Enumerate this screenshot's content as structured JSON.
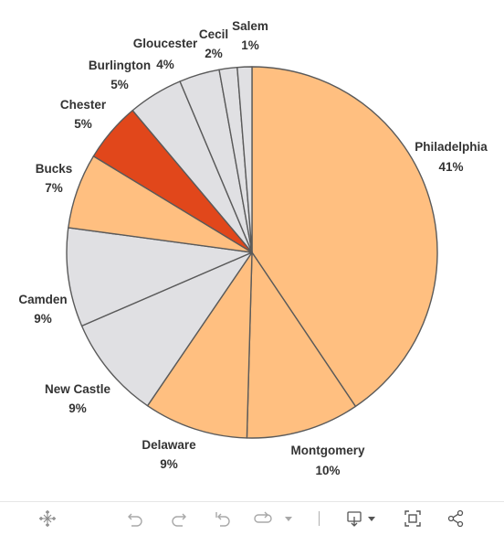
{
  "chart_data": {
    "type": "pie",
    "title": "",
    "slices": [
      {
        "label": "Philadelphia",
        "pct_label": "41%",
        "value": 41.5,
        "color": "#ffbf80"
      },
      {
        "label": "Montgomery",
        "pct_label": "10%",
        "value": 10.1,
        "color": "#ffbf80"
      },
      {
        "label": "Delaware",
        "pct_label": "9%",
        "value": 9.3,
        "color": "#ffbf80"
      },
      {
        "label": "New Castle",
        "pct_label": "9%",
        "value": 9.2,
        "color": "#e0e0e3"
      },
      {
        "label": "Camden",
        "pct_label": "9%",
        "value": 8.8,
        "color": "#e0e0e3"
      },
      {
        "label": "Bucks",
        "pct_label": "7%",
        "value": 6.7,
        "color": "#ffbf80"
      },
      {
        "label": "Chester",
        "pct_label": "5%",
        "value": 5.3,
        "color": "#e1471b"
      },
      {
        "label": "Burlington",
        "pct_label": "5%",
        "value": 4.9,
        "color": "#e0e0e3"
      },
      {
        "label": "Gloucester",
        "pct_label": "4%",
        "value": 3.6,
        "color": "#e0e0e3"
      },
      {
        "label": "Cecil",
        "pct_label": "2%",
        "value": 1.6,
        "color": "#e0e0e3"
      },
      {
        "label": "Salem",
        "pct_label": "1%",
        "value": 1.3,
        "color": "#e0e0e3"
      }
    ]
  },
  "toolbar": {
    "icons": [
      "tableau-logo-icon",
      "undo-icon",
      "redo-icon",
      "revert-icon",
      "refresh-icon",
      "dropdown-icon",
      "download-icon",
      "fullscreen-icon",
      "share-icon"
    ]
  }
}
